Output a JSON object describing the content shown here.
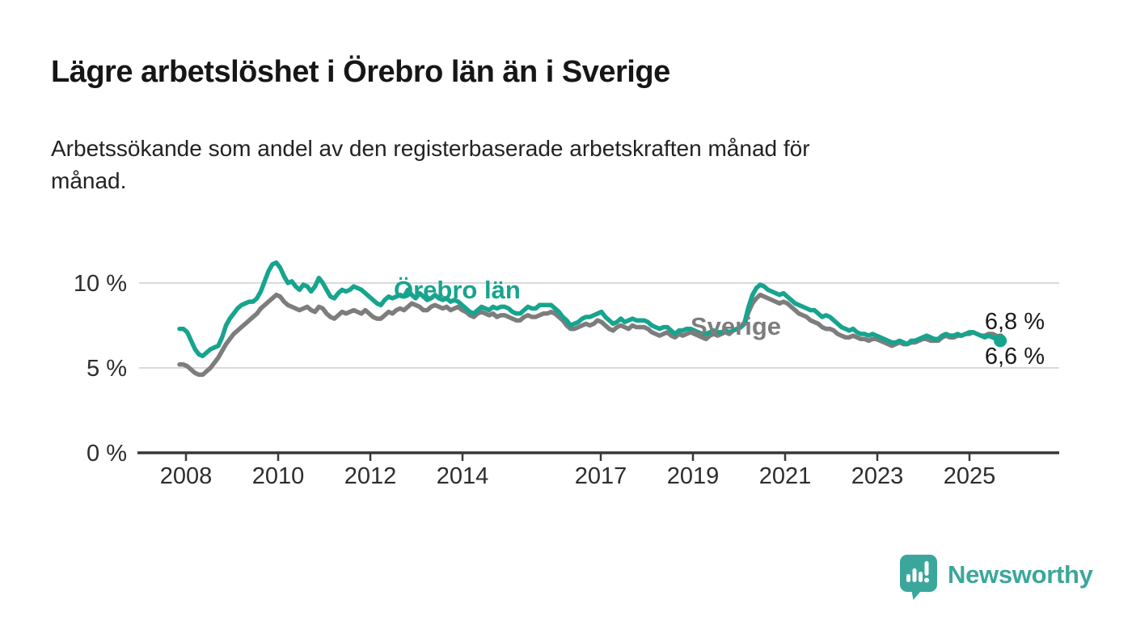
{
  "header": {
    "title": "Lägre arbetslöshet i Örebro län än i Sverige",
    "subtitle_line1": "Arbetssökande som andel av den registerbaserade arbetskraften månad för",
    "subtitle_line2": "månad."
  },
  "branding": {
    "logo_text": "Newsworthy",
    "logo_icon": "newsworthy-speech-bubble-bar-chart-icon",
    "brand_color": "#3BA79C"
  },
  "chart_data": {
    "type": "line",
    "title": "Lägre arbetslöshet i Örebro län än i Sverige",
    "x_unit": "month",
    "x_start": "2008-01",
    "x_end": "2025-09",
    "ylim": [
      0,
      12
    ],
    "grid": "horizontal-at-5-and-10",
    "legend_position": "inline-labels-on-lines",
    "y_axis_labels": [
      "10 %",
      "5 %",
      "0 %"
    ],
    "x_tick_labels": [
      "2008",
      "2010",
      "2012",
      "2014",
      "2017",
      "2019",
      "2021",
      "2023",
      "2025"
    ],
    "end_labels": {
      "sverige": "6,8 %",
      "orebro": "6,6 %"
    },
    "series": [
      {
        "id": "sverige",
        "name": "Sverige",
        "color": "#7d7d7d",
        "end_value_label": "6,8 %",
        "values": [
          5.2,
          5.2,
          5.1,
          4.9,
          4.7,
          4.6,
          4.6,
          4.8,
          5.0,
          5.3,
          5.6,
          6.0,
          6.4,
          6.7,
          7.0,
          7.2,
          7.4,
          7.6,
          7.8,
          8.0,
          8.2,
          8.5,
          8.7,
          8.9,
          9.1,
          9.3,
          9.2,
          8.9,
          8.7,
          8.6,
          8.5,
          8.4,
          8.5,
          8.6,
          8.4,
          8.3,
          8.6,
          8.5,
          8.2,
          8.0,
          7.9,
          8.1,
          8.3,
          8.2,
          8.3,
          8.4,
          8.3,
          8.2,
          8.4,
          8.2,
          8.0,
          7.9,
          7.9,
          8.1,
          8.3,
          8.2,
          8.4,
          8.5,
          8.4,
          8.6,
          8.8,
          8.7,
          8.6,
          8.4,
          8.4,
          8.6,
          8.7,
          8.6,
          8.5,
          8.6,
          8.4,
          8.5,
          8.6,
          8.4,
          8.3,
          8.1,
          8.0,
          8.2,
          8.3,
          8.2,
          8.1,
          8.2,
          8.0,
          8.1,
          8.1,
          8.0,
          7.9,
          7.8,
          7.8,
          8.0,
          8.1,
          8.0,
          8.0,
          8.1,
          8.2,
          8.2,
          8.3,
          8.2,
          8.0,
          7.8,
          7.5,
          7.3,
          7.3,
          7.4,
          7.5,
          7.6,
          7.5,
          7.6,
          7.8,
          7.7,
          7.5,
          7.3,
          7.2,
          7.4,
          7.5,
          7.4,
          7.3,
          7.5,
          7.4,
          7.4,
          7.4,
          7.3,
          7.1,
          7.0,
          6.9,
          7.0,
          7.1,
          6.9,
          6.8,
          7.0,
          6.9,
          7.0,
          7.1,
          7.0,
          6.9,
          6.8,
          6.7,
          6.9,
          7.0,
          6.9,
          7.0,
          7.1,
          7.0,
          7.2,
          7.3,
          7.4,
          7.6,
          8.3,
          8.8,
          9.1,
          9.3,
          9.2,
          9.1,
          9.0,
          8.9,
          8.8,
          8.9,
          8.8,
          8.6,
          8.4,
          8.2,
          8.1,
          8.0,
          7.8,
          7.7,
          7.6,
          7.4,
          7.3,
          7.3,
          7.2,
          7.0,
          6.9,
          6.8,
          6.8,
          6.9,
          6.8,
          6.7,
          6.7,
          6.6,
          6.7,
          6.7,
          6.6,
          6.5,
          6.4,
          6.3,
          6.4,
          6.5,
          6.4,
          6.4,
          6.5,
          6.5,
          6.6,
          6.7,
          6.7,
          6.6,
          6.6,
          6.6,
          6.8,
          6.9,
          6.8,
          6.8,
          6.9,
          6.9,
          7.0,
          7.0,
          7.1,
          7.0,
          6.9,
          6.9,
          7.0,
          7.0,
          6.9,
          6.8
        ]
      },
      {
        "id": "orebro",
        "name": "Örebro län",
        "color": "#17a48e",
        "end_value_label": "6,6 %",
        "values": [
          7.3,
          7.3,
          7.1,
          6.6,
          6.1,
          5.8,
          5.7,
          5.9,
          6.1,
          6.2,
          6.3,
          6.8,
          7.5,
          7.9,
          8.2,
          8.5,
          8.7,
          8.8,
          8.9,
          8.9,
          9.1,
          9.5,
          10.1,
          10.7,
          11.1,
          11.2,
          10.9,
          10.4,
          10.0,
          10.1,
          9.8,
          9.6,
          9.9,
          9.8,
          9.5,
          9.8,
          10.3,
          10.0,
          9.6,
          9.2,
          9.1,
          9.4,
          9.6,
          9.5,
          9.6,
          9.8,
          9.7,
          9.6,
          9.4,
          9.2,
          9.0,
          8.8,
          8.7,
          9.0,
          9.2,
          9.1,
          9.2,
          9.3,
          9.2,
          9.6,
          9.3,
          9.1,
          9.4,
          9.2,
          9.0,
          9.1,
          9.3,
          9.1,
          9.0,
          9.1,
          8.9,
          9.0,
          8.9,
          8.7,
          8.5,
          8.3,
          8.2,
          8.4,
          8.6,
          8.5,
          8.4,
          8.6,
          8.5,
          8.6,
          8.6,
          8.5,
          8.3,
          8.2,
          8.2,
          8.4,
          8.6,
          8.5,
          8.5,
          8.7,
          8.7,
          8.7,
          8.7,
          8.5,
          8.3,
          8.0,
          7.8,
          7.5,
          7.6,
          7.7,
          7.9,
          8.0,
          8.0,
          8.1,
          8.2,
          8.3,
          8.0,
          7.8,
          7.6,
          7.7,
          7.9,
          7.7,
          7.8,
          7.9,
          7.8,
          7.8,
          7.8,
          7.7,
          7.5,
          7.4,
          7.3,
          7.4,
          7.4,
          7.2,
          7.0,
          7.2,
          7.2,
          7.3,
          7.3,
          7.2,
          7.1,
          7.0,
          7.0,
          7.1,
          7.2,
          7.1,
          7.1,
          7.2,
          7.1,
          7.2,
          7.3,
          7.4,
          7.7,
          8.6,
          9.3,
          9.7,
          9.9,
          9.8,
          9.6,
          9.5,
          9.4,
          9.3,
          9.4,
          9.2,
          9.0,
          8.8,
          8.7,
          8.6,
          8.5,
          8.4,
          8.4,
          8.2,
          8.0,
          8.1,
          8.0,
          7.8,
          7.6,
          7.4,
          7.3,
          7.2,
          7.3,
          7.1,
          7.0,
          7.0,
          6.9,
          7.0,
          6.9,
          6.8,
          6.7,
          6.6,
          6.5,
          6.5,
          6.6,
          6.5,
          6.4,
          6.6,
          6.6,
          6.7,
          6.8,
          6.9,
          6.8,
          6.7,
          6.7,
          6.9,
          7.0,
          6.9,
          6.9,
          7.0,
          6.9,
          7.0,
          7.1,
          7.1,
          7.0,
          6.9,
          6.8,
          6.9,
          6.8,
          6.7,
          6.6
        ]
      }
    ]
  }
}
